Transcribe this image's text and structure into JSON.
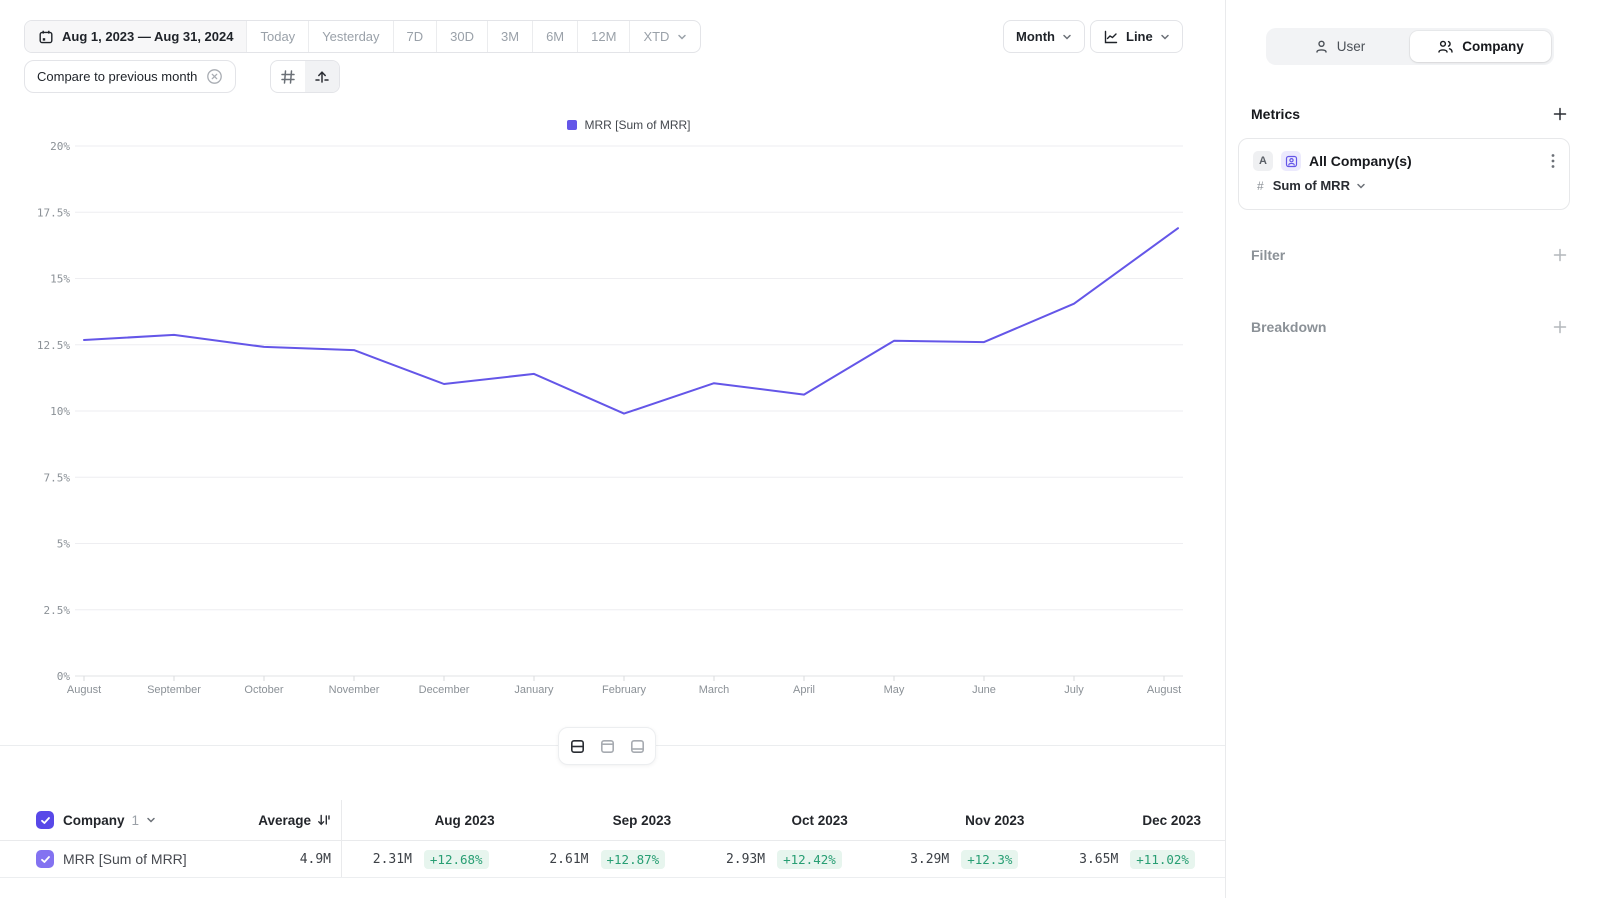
{
  "toolbar": {
    "date_range": "Aug 1, 2023 — Aug 31, 2024",
    "presets": [
      "Today",
      "Yesterday",
      "7D",
      "30D",
      "3M",
      "6M",
      "12M"
    ],
    "xtd_label": "XTD",
    "compare_chip": "Compare to previous month",
    "granularity": "Month",
    "chart_type": "Line"
  },
  "entity_toggle": {
    "user_label": "User",
    "company_label": "Company",
    "selected": "Company"
  },
  "sidebar": {
    "metrics_title": "Metrics",
    "metric_card": {
      "badge": "A",
      "name": "All Company(s)",
      "hash": "#",
      "aggregation": "Sum of MRR"
    },
    "filter_label": "Filter",
    "breakdown_label": "Breakdown"
  },
  "chart_data": {
    "type": "line",
    "legend_label": "MRR [Sum of MRR]",
    "x": [
      "August",
      "September",
      "October",
      "November",
      "December",
      "January",
      "February",
      "March",
      "April",
      "May",
      "June",
      "July",
      "August"
    ],
    "series": [
      {
        "name": "MRR [Sum of MRR]",
        "color": "#6456e8",
        "values": [
          12.68,
          12.87,
          12.42,
          12.3,
          11.02,
          11.4,
          9.9,
          11.05,
          10.62,
          12.65,
          12.6,
          14.05,
          16.9
        ]
      }
    ],
    "ylim": [
      0,
      20
    ],
    "yticks": [
      "20%",
      "17.5%",
      "15%",
      "12.5%",
      "10%",
      "7.5%",
      "5%",
      "2.5%",
      "0%"
    ],
    "grid": true,
    "legend_position": "top-center"
  },
  "table": {
    "header": {
      "entity": "Company",
      "count": "1",
      "average": "Average",
      "months": [
        "Aug 2023",
        "Sep 2023",
        "Oct 2023",
        "Nov 2023",
        "Dec 2023"
      ]
    },
    "rows": [
      {
        "label": "MRR [Sum of MRR]",
        "average": "4.9M",
        "cells": [
          {
            "value": "2.31M",
            "delta": "+12.68%"
          },
          {
            "value": "2.61M",
            "delta": "+12.87%"
          },
          {
            "value": "2.93M",
            "delta": "+12.42%"
          },
          {
            "value": "3.29M",
            "delta": "+12.3%"
          },
          {
            "value": "3.65M",
            "delta": "+11.02%"
          }
        ]
      }
    ]
  },
  "colors": {
    "accent": "#6456e8",
    "accent_light_bg": "#eceafd",
    "checkbox_header": "#5848e8",
    "checkbox_row": "#8372f1",
    "delta_text": "#279e73",
    "delta_bg": "#e7f5ee",
    "muted_text": "#8b9197",
    "grid_line": "#eeeef1"
  }
}
